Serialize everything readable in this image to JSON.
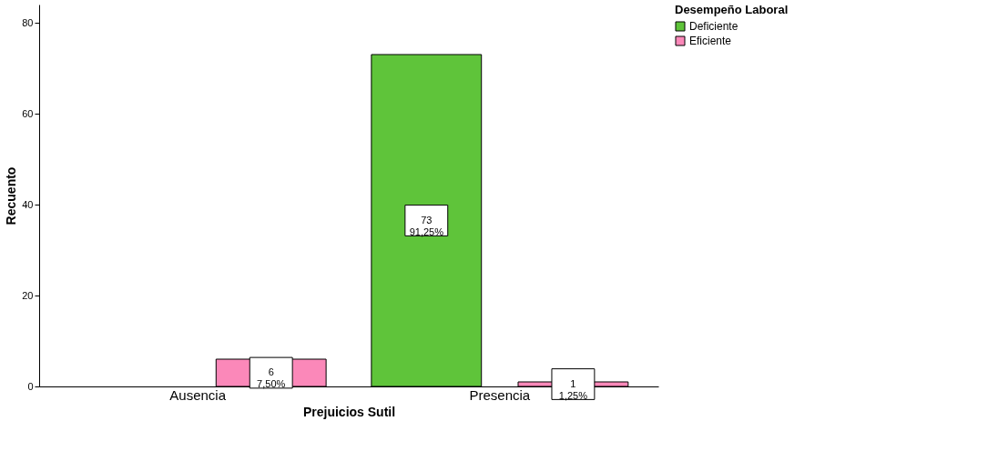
{
  "chart_data": {
    "type": "bar",
    "xlabel": "Prejuicios Sutil",
    "ylabel": "Recuento",
    "legend_title": "Desempeño Laboral",
    "categories": [
      "Ausencia",
      "Presencia"
    ],
    "series": [
      {
        "name": "Deficiente",
        "color": "#5fc43a",
        "values": [
          null,
          73
        ],
        "value_labels": [
          null,
          "73\n91,25%"
        ]
      },
      {
        "name": "Eficiente",
        "color": "#fb88b9",
        "values": [
          6,
          1
        ],
        "value_labels": [
          "6\n7,50%",
          "1\n1,25%"
        ]
      }
    ],
    "ylim": [
      0,
      84
    ],
    "yticks": [
      0,
      20,
      40,
      60,
      80
    ],
    "grid": false,
    "legend": "top right"
  }
}
